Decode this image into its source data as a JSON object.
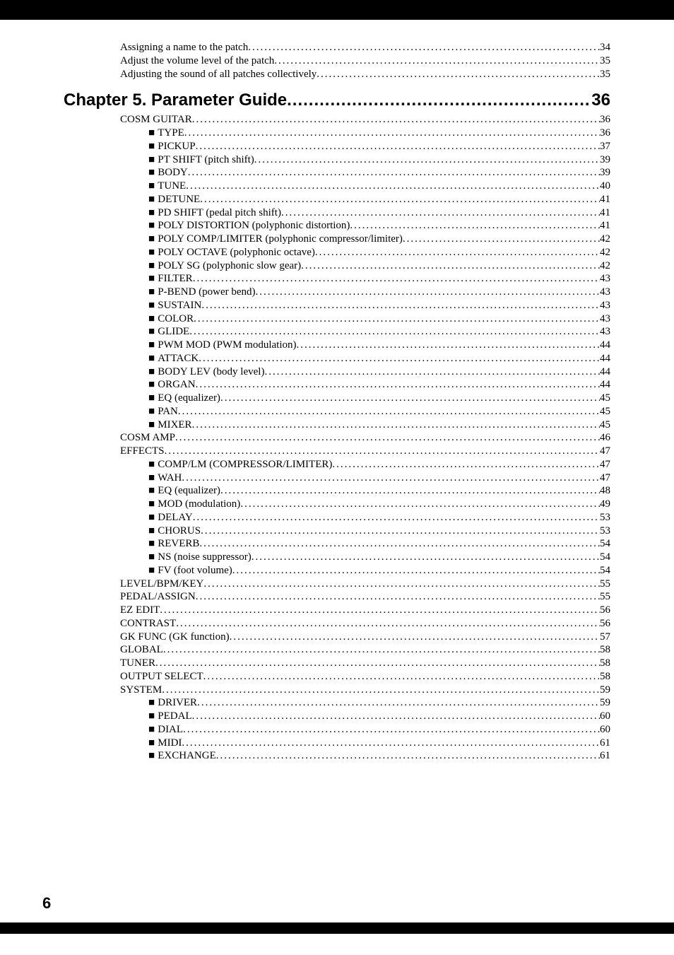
{
  "entries": [
    {
      "level": "level2",
      "label": "Assigning a name to the patch",
      "page": "34"
    },
    {
      "level": "level2",
      "label": "Adjust the volume level of the patch",
      "page": "35"
    },
    {
      "level": "level2",
      "label": "Adjusting the sound of all patches collectively",
      "page": "35"
    }
  ],
  "chapter": {
    "label": "Chapter 5. Parameter Guide",
    "page": "36"
  },
  "entries2": [
    {
      "level": "level2",
      "label": "COSM GUITAR",
      "page": "36"
    },
    {
      "level": "level3",
      "sq": true,
      "label": "TYPE",
      "page": "36"
    },
    {
      "level": "level3",
      "sq": true,
      "label": "PICKUP",
      "page": "37"
    },
    {
      "level": "level3",
      "sq": true,
      "label": "PT SHIFT (pitch shift)",
      "page": "39"
    },
    {
      "level": "level3",
      "sq": true,
      "label": "BODY",
      "page": "39"
    },
    {
      "level": "level3",
      "sq": true,
      "label": "TUNE",
      "page": "40"
    },
    {
      "level": "level3",
      "sq": true,
      "label": "DETUNE",
      "page": "41"
    },
    {
      "level": "level3",
      "sq": true,
      "label": "PD SHIFT (pedal pitch shift)",
      "page": "41"
    },
    {
      "level": "level3",
      "sq": true,
      "label": "POLY DISTORTION (polyphonic distortion)",
      "page": "41"
    },
    {
      "level": "level3",
      "sq": true,
      "label": "POLY COMP/LIMITER (polyphonic compressor/limiter)",
      "page": "42"
    },
    {
      "level": "level3",
      "sq": true,
      "label": "POLY OCTAVE (polyphonic octave)",
      "page": "42"
    },
    {
      "level": "level3",
      "sq": true,
      "label": "POLY SG (polyphonic slow gear)",
      "page": "42"
    },
    {
      "level": "level3",
      "sq": true,
      "label": "FILTER",
      "page": "43"
    },
    {
      "level": "level3",
      "sq": true,
      "label": "P-BEND (power bend)",
      "page": "43"
    },
    {
      "level": "level3",
      "sq": true,
      "label": "SUSTAIN",
      "page": "43"
    },
    {
      "level": "level3",
      "sq": true,
      "label": "COLOR",
      "page": "43"
    },
    {
      "level": "level3",
      "sq": true,
      "label": "GLIDE",
      "page": "43"
    },
    {
      "level": "level3",
      "sq": true,
      "label": "PWM MOD (PWM modulation)",
      "page": "44"
    },
    {
      "level": "level3",
      "sq": true,
      "label": "ATTACK",
      "page": "44"
    },
    {
      "level": "level3",
      "sq": true,
      "label": "BODY LEV (body level)",
      "page": "44"
    },
    {
      "level": "level3",
      "sq": true,
      "label": "ORGAN",
      "page": "44"
    },
    {
      "level": "level3",
      "sq": true,
      "label": "EQ (equalizer)",
      "page": "45"
    },
    {
      "level": "level3",
      "sq": true,
      "label": "PAN",
      "page": "45"
    },
    {
      "level": "level3",
      "sq": true,
      "label": "MIXER",
      "page": "45"
    },
    {
      "level": "level2",
      "label": "COSM AMP",
      "page": "46"
    },
    {
      "level": "level2",
      "label": "EFFECTS",
      "page": "47"
    },
    {
      "level": "level3",
      "sq": true,
      "label": "COMP/LM (COMPRESSOR/LIMITER)",
      "page": "47"
    },
    {
      "level": "level3",
      "sq": true,
      "label": "WAH",
      "page": "47"
    },
    {
      "level": "level3",
      "sq": true,
      "label": "EQ (equalizer)",
      "page": "48"
    },
    {
      "level": "level3",
      "sq": true,
      "label": "MOD (modulation)",
      "page": "49"
    },
    {
      "level": "level3",
      "sq": true,
      "label": "DELAY",
      "page": "53"
    },
    {
      "level": "level3",
      "sq": true,
      "label": "CHORUS",
      "page": "53"
    },
    {
      "level": "level3",
      "sq": true,
      "label": "REVERB",
      "page": "54"
    },
    {
      "level": "level3",
      "sq": true,
      "label": "NS (noise suppressor)",
      "page": "54"
    },
    {
      "level": "level3",
      "sq": true,
      "label": "FV (foot volume)",
      "page": "54"
    },
    {
      "level": "level2",
      "label": "LEVEL/BPM/KEY",
      "page": "55"
    },
    {
      "level": "level2",
      "label": "PEDAL/ASSIGN",
      "page": "55"
    },
    {
      "level": "level2",
      "label": "EZ EDIT",
      "page": "56"
    },
    {
      "level": "level2",
      "label": "CONTRAST",
      "page": "56"
    },
    {
      "level": "level2",
      "label": "GK FUNC (GK function)",
      "page": "57"
    },
    {
      "level": "level2",
      "label": "GLOBAL",
      "page": "58"
    },
    {
      "level": "level2",
      "label": "TUNER",
      "page": "58"
    },
    {
      "level": "level2",
      "label": "OUTPUT SELECT",
      "page": "58"
    },
    {
      "level": "level2",
      "label": "SYSTEM",
      "page": "59"
    },
    {
      "level": "level3",
      "sq": true,
      "label": "DRIVER",
      "page": "59"
    },
    {
      "level": "level3",
      "sq": true,
      "label": "PEDAL",
      "page": "60"
    },
    {
      "level": "level3",
      "sq": true,
      "label": "DIAL",
      "page": "60"
    },
    {
      "level": "level3",
      "sq": true,
      "label": "MIDI",
      "page": "61"
    },
    {
      "level": "level3",
      "sq": true,
      "label": "EXCHANGE",
      "page": "61"
    }
  ],
  "pageNumber": "6"
}
